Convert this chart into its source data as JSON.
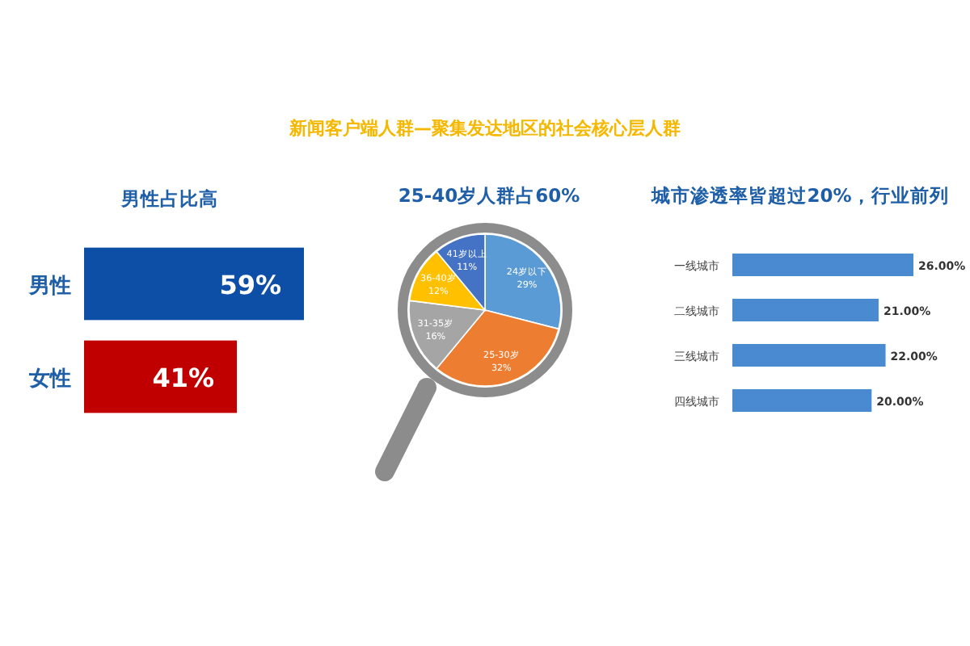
{
  "chart_data": [
    {
      "type": "bar",
      "orientation": "horizontal",
      "title": "男性占比高",
      "annotations": [
        "新闻客户端人群—聚集发达地区的社会核心层人群"
      ],
      "categories": [
        "男性",
        "女性"
      ],
      "values": [
        59,
        41
      ],
      "colors": [
        "#0d4ea6",
        "#c00000"
      ],
      "value_labels": [
        "59%",
        "41%"
      ]
    },
    {
      "type": "pie",
      "title": "25-40岁人群占60%",
      "categories": [
        "24岁以下",
        "25-30岁",
        "31-35岁",
        "36-40岁",
        "41岁以上"
      ],
      "values": [
        29,
        32,
        16,
        12,
        11
      ],
      "colors": [
        "#5b9bd5",
        "#ed7d31",
        "#a5a5a5",
        "#ffc000",
        "#4472c4"
      ],
      "value_labels": [
        "29%",
        "32%",
        "16%",
        "12%",
        "11%"
      ]
    },
    {
      "type": "bar",
      "orientation": "horizontal",
      "title": "城市渗透率皆超过20%，行业前列",
      "categories": [
        "一线城市",
        "二线城市",
        "三线城市",
        "四线城市"
      ],
      "values": [
        26,
        21,
        22,
        20
      ],
      "color": "#4a8ad0",
      "value_labels": [
        "26.00%",
        "21.00%",
        "22.00%",
        "20.00%"
      ]
    }
  ]
}
